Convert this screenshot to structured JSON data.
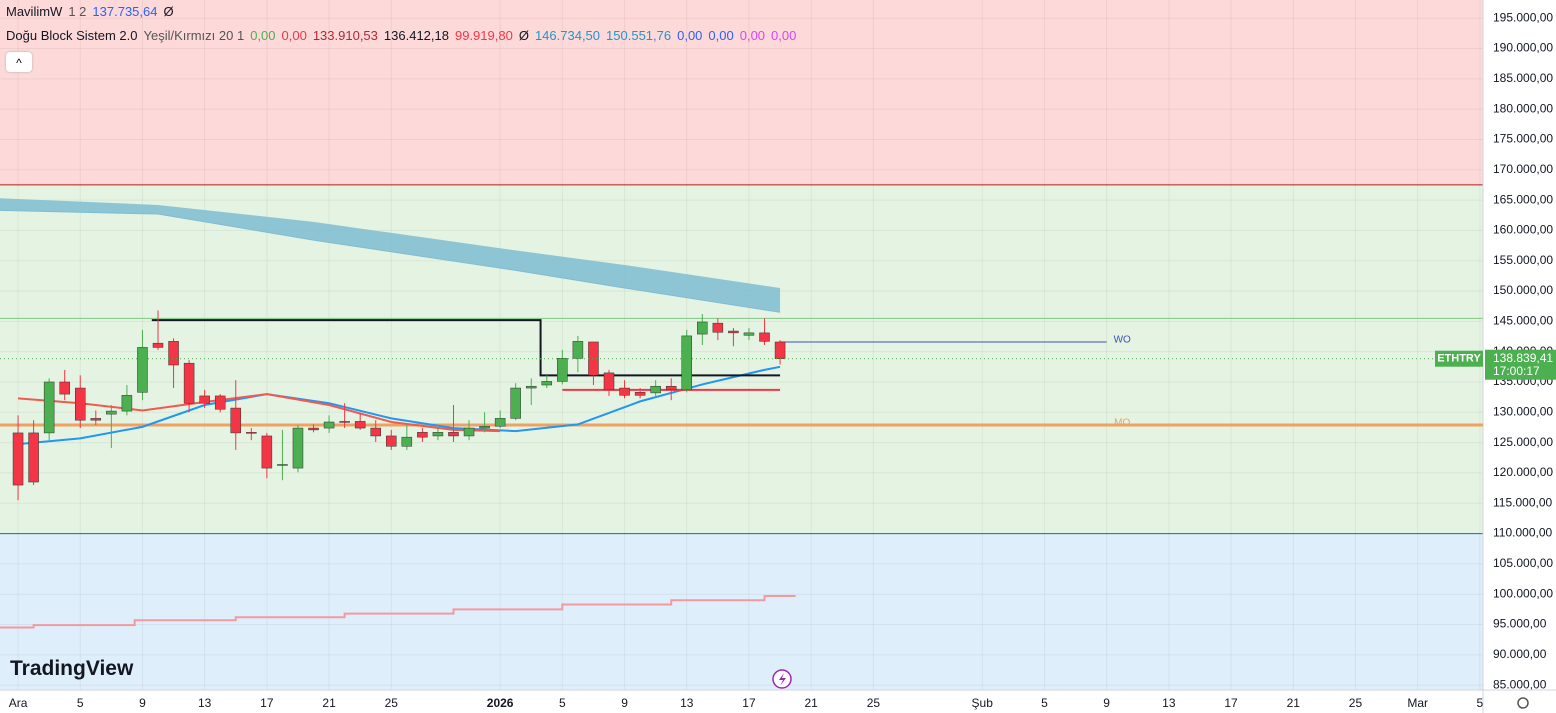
{
  "chart_data": {
    "type": "candlestick",
    "x": [
      0,
      1,
      2,
      3,
      4,
      5,
      6,
      7,
      8,
      9,
      10,
      11,
      12,
      13,
      14,
      15,
      16,
      17,
      18,
      19,
      20,
      21,
      22,
      23,
      24,
      25,
      26,
      27,
      28,
      29,
      30,
      31,
      32,
      33,
      34,
      35,
      36,
      37,
      38,
      39,
      40,
      41,
      42,
      43,
      44,
      45,
      46,
      47,
      48,
      49
    ],
    "open": [
      126600,
      126600,
      126600,
      135000,
      134000,
      129000,
      129700,
      130200,
      133300,
      141400,
      141700,
      138100,
      132700,
      132700,
      130700,
      126700,
      126100,
      121300,
      120800,
      127400,
      127400,
      128500,
      128500,
      127400,
      126100,
      124400,
      126700,
      126100,
      126700,
      126100,
      127400,
      127700,
      129000,
      134000,
      134500,
      135100,
      138900,
      141600,
      136500,
      134000,
      133300,
      133200,
      134300,
      133700,
      142900,
      144700,
      143400,
      142700,
      143100,
      141600
    ],
    "high": [
      129500,
      128700,
      135600,
      137000,
      136100,
      130300,
      131200,
      134500,
      143600,
      146800,
      142200,
      138600,
      133700,
      133000,
      135300,
      127400,
      126600,
      127100,
      127900,
      128000,
      129500,
      131500,
      129900,
      128700,
      127100,
      128000,
      127400,
      127400,
      131200,
      128700,
      130000,
      130300,
      134800,
      135600,
      136100,
      140300,
      142600,
      141600,
      137000,
      135300,
      134000,
      135300,
      135600,
      143600,
      146200,
      145500,
      143900,
      143900,
      145500,
      141900
    ],
    "low": [
      115500,
      118000,
      125400,
      132000,
      127400,
      127900,
      124100,
      129500,
      132000,
      140300,
      134000,
      130000,
      130700,
      130000,
      123800,
      125400,
      119100,
      118800,
      120100,
      126700,
      126600,
      127400,
      127100,
      125100,
      123800,
      123800,
      125100,
      125400,
      125100,
      125400,
      126700,
      127400,
      128700,
      131200,
      134000,
      134600,
      136600,
      134500,
      132700,
      132300,
      132300,
      132700,
      132000,
      133300,
      141100,
      141900,
      140900,
      141900,
      141100,
      137900
    ],
    "close": [
      118000,
      118500,
      135000,
      133000,
      128700,
      128700,
      130200,
      132800,
      140700,
      140700,
      137800,
      131500,
      131500,
      130500,
      126600,
      126600,
      120800,
      121400,
      127400,
      127100,
      128400,
      128400,
      127400,
      126100,
      124400,
      125900,
      125900,
      126700,
      126100,
      127400,
      127700,
      129000,
      134000,
      134300,
      135100,
      138900,
      141700,
      136100,
      133700,
      132800,
      132800,
      134300,
      133700,
      142600,
      144900,
      143200,
      143100,
      143100,
      141700,
      138839.41
    ],
    "up_color": "#4caf50",
    "down_color": "#f23645",
    "xlim": [
      -1.16,
      94.2
    ],
    "ylim": [
      84200,
      198000
    ],
    "xticks": [
      {
        "value": 0,
        "label": "Ara"
      },
      {
        "value": 4,
        "label": "5"
      },
      {
        "value": 8,
        "label": "9"
      },
      {
        "value": 12,
        "label": "13"
      },
      {
        "value": 16,
        "label": "17"
      },
      {
        "value": 20,
        "label": "21"
      },
      {
        "value": 24,
        "label": "25"
      },
      {
        "value": 31,
        "label": "2026"
      },
      {
        "value": 35,
        "label": "5"
      },
      {
        "value": 39,
        "label": "9"
      },
      {
        "value": 43,
        "label": "13"
      },
      {
        "value": 47,
        "label": "17"
      },
      {
        "value": 51,
        "label": "21"
      },
      {
        "value": 55,
        "label": "25"
      },
      {
        "value": 62,
        "label": "Şub"
      },
      {
        "value": 66,
        "label": "5"
      },
      {
        "value": 70,
        "label": "9"
      },
      {
        "value": 74,
        "label": "13"
      },
      {
        "value": 78,
        "label": "17"
      },
      {
        "value": 82,
        "label": "21"
      },
      {
        "value": 86,
        "label": "25"
      },
      {
        "value": 90,
        "label": "Mar"
      },
      {
        "value": 94,
        "label": "5"
      }
    ],
    "yticks": [
      {
        "value": 85000,
        "label": "85.000,00"
      },
      {
        "value": 90000,
        "label": "90.000,00"
      },
      {
        "value": 95000,
        "label": "95.000,00"
      },
      {
        "value": 100000,
        "label": "100.000,00"
      },
      {
        "value": 105000,
        "label": "105.000,00"
      },
      {
        "value": 110000,
        "label": "110.000,00"
      },
      {
        "value": 115000,
        "label": "115.000,00"
      },
      {
        "value": 120000,
        "label": "120.000,00"
      },
      {
        "value": 125000,
        "label": "125.000,00"
      },
      {
        "value": 130000,
        "label": "130.000,00"
      },
      {
        "value": 135000,
        "label": "135.000,00"
      },
      {
        "value": 140000,
        "label": "140.000,00"
      },
      {
        "value": 145000,
        "label": "145.000,00"
      },
      {
        "value": 150000,
        "label": "150.000,00"
      },
      {
        "value": 155000,
        "label": "155.000,00"
      },
      {
        "value": 160000,
        "label": "160.000,00"
      },
      {
        "value": 165000,
        "label": "165.000,00"
      },
      {
        "value": 170000,
        "label": "170.000,00"
      },
      {
        "value": 175000,
        "label": "175.000,00"
      },
      {
        "value": 180000,
        "label": "180.000,00"
      },
      {
        "value": 185000,
        "label": "185.000,00"
      },
      {
        "value": 190000,
        "label": "190.000,00"
      },
      {
        "value": 195000,
        "label": "195.000,00"
      }
    ],
    "grid": true,
    "zones": [
      {
        "low": 167500,
        "high": 198000,
        "color": "#fdd9d9",
        "border": "#b71c1c"
      },
      {
        "low": 110000,
        "high": 167500,
        "color": "#e4f3e2",
        "border": "#00897b"
      },
      {
        "low": 84200,
        "high": 110000,
        "color": "#dfeefb",
        "border": "#5c8fc7"
      }
    ],
    "band": {
      "color": "#7fbcd2",
      "x": [
        -1.16,
        9,
        19,
        32,
        39,
        49
      ],
      "upper": [
        165300,
        164200,
        161400,
        156700,
        154300,
        150500
      ],
      "lower": [
        163300,
        162700,
        158400,
        153400,
        150500,
        146500
      ]
    },
    "lines": [
      {
        "color": "#2196f3",
        "step": false,
        "x": [
          0,
          4,
          8,
          12,
          16,
          20,
          24,
          28,
          32,
          36,
          40,
          44,
          48,
          49
        ],
        "values": [
          124750,
          125700,
          127600,
          131200,
          133000,
          131500,
          129000,
          127400,
          126900,
          128000,
          131800,
          134600,
          137000,
          137500
        ]
      },
      {
        "color": "#f05a4f",
        "step": false,
        "x": [
          0,
          4,
          8,
          12,
          16,
          20,
          24,
          28,
          31
        ],
        "values": [
          132300,
          131500,
          130300,
          131700,
          133000,
          131200,
          128400,
          127100,
          126900
        ]
      },
      {
        "color": "#f29aa0",
        "step": true,
        "x": [
          -1.16,
          1,
          7.5,
          14,
          21,
          28,
          35,
          42,
          48,
          50
        ],
        "values": [
          94500,
          94900,
          95700,
          96200,
          96800,
          97500,
          98300,
          99000,
          99700,
          99700
        ]
      },
      {
        "color": "#131722",
        "step": false,
        "x": [
          8.6,
          33.6,
          33.6,
          49
        ],
        "values": [
          145200,
          145200,
          136100,
          136100
        ]
      },
      {
        "color": "#f23645",
        "step": false,
        "x": [
          35,
          49
        ],
        "values": [
          133700,
          133700
        ]
      }
    ],
    "levels": [
      {
        "value": 145500,
        "color": "#81c784"
      },
      {
        "value": 127900,
        "color": "#f0a060",
        "label": "MO",
        "label_at": 71
      },
      {
        "value": 141600,
        "color": "#3f51b5",
        "from": 49,
        "to": 70,
        "label": "WO",
        "label_at": 71
      }
    ],
    "price_tag": {
      "symbol": "ETHTRY",
      "price": "138.839,41",
      "countdown": "17:00:17"
    }
  },
  "legend": [
    {
      "name": "MavilimW",
      "params": "1 2",
      "values": [
        {
          "text": "137.735,64",
          "color": "#2962ff"
        },
        {
          "text": "Ø",
          "color": "#131722"
        }
      ]
    },
    {
      "name": "Doğu Block Sistem 2.0",
      "params": "Yeşil/Kırmızı 20 1",
      "values": [
        {
          "text": "0,00",
          "color": "#4caf50"
        },
        {
          "text": "0,00",
          "color": "#f23645"
        },
        {
          "text": "133.910,53",
          "color": "#b22833"
        },
        {
          "text": "136.412,18",
          "color": "#131722"
        },
        {
          "text": "99.919,80",
          "color": "#f23645"
        },
        {
          "text": "Ø",
          "color": "#131722"
        },
        {
          "text": "146.734,50",
          "color": "#2196c8"
        },
        {
          "text": "150.551,76",
          "color": "#2196c8"
        },
        {
          "text": "0,00",
          "color": "#2962ff"
        },
        {
          "text": "0,00",
          "color": "#2962ff"
        },
        {
          "text": "0,00",
          "color": "#e040fb"
        },
        {
          "text": "0,00",
          "color": "#e040fb"
        }
      ]
    }
  ],
  "logo": "TradingView"
}
